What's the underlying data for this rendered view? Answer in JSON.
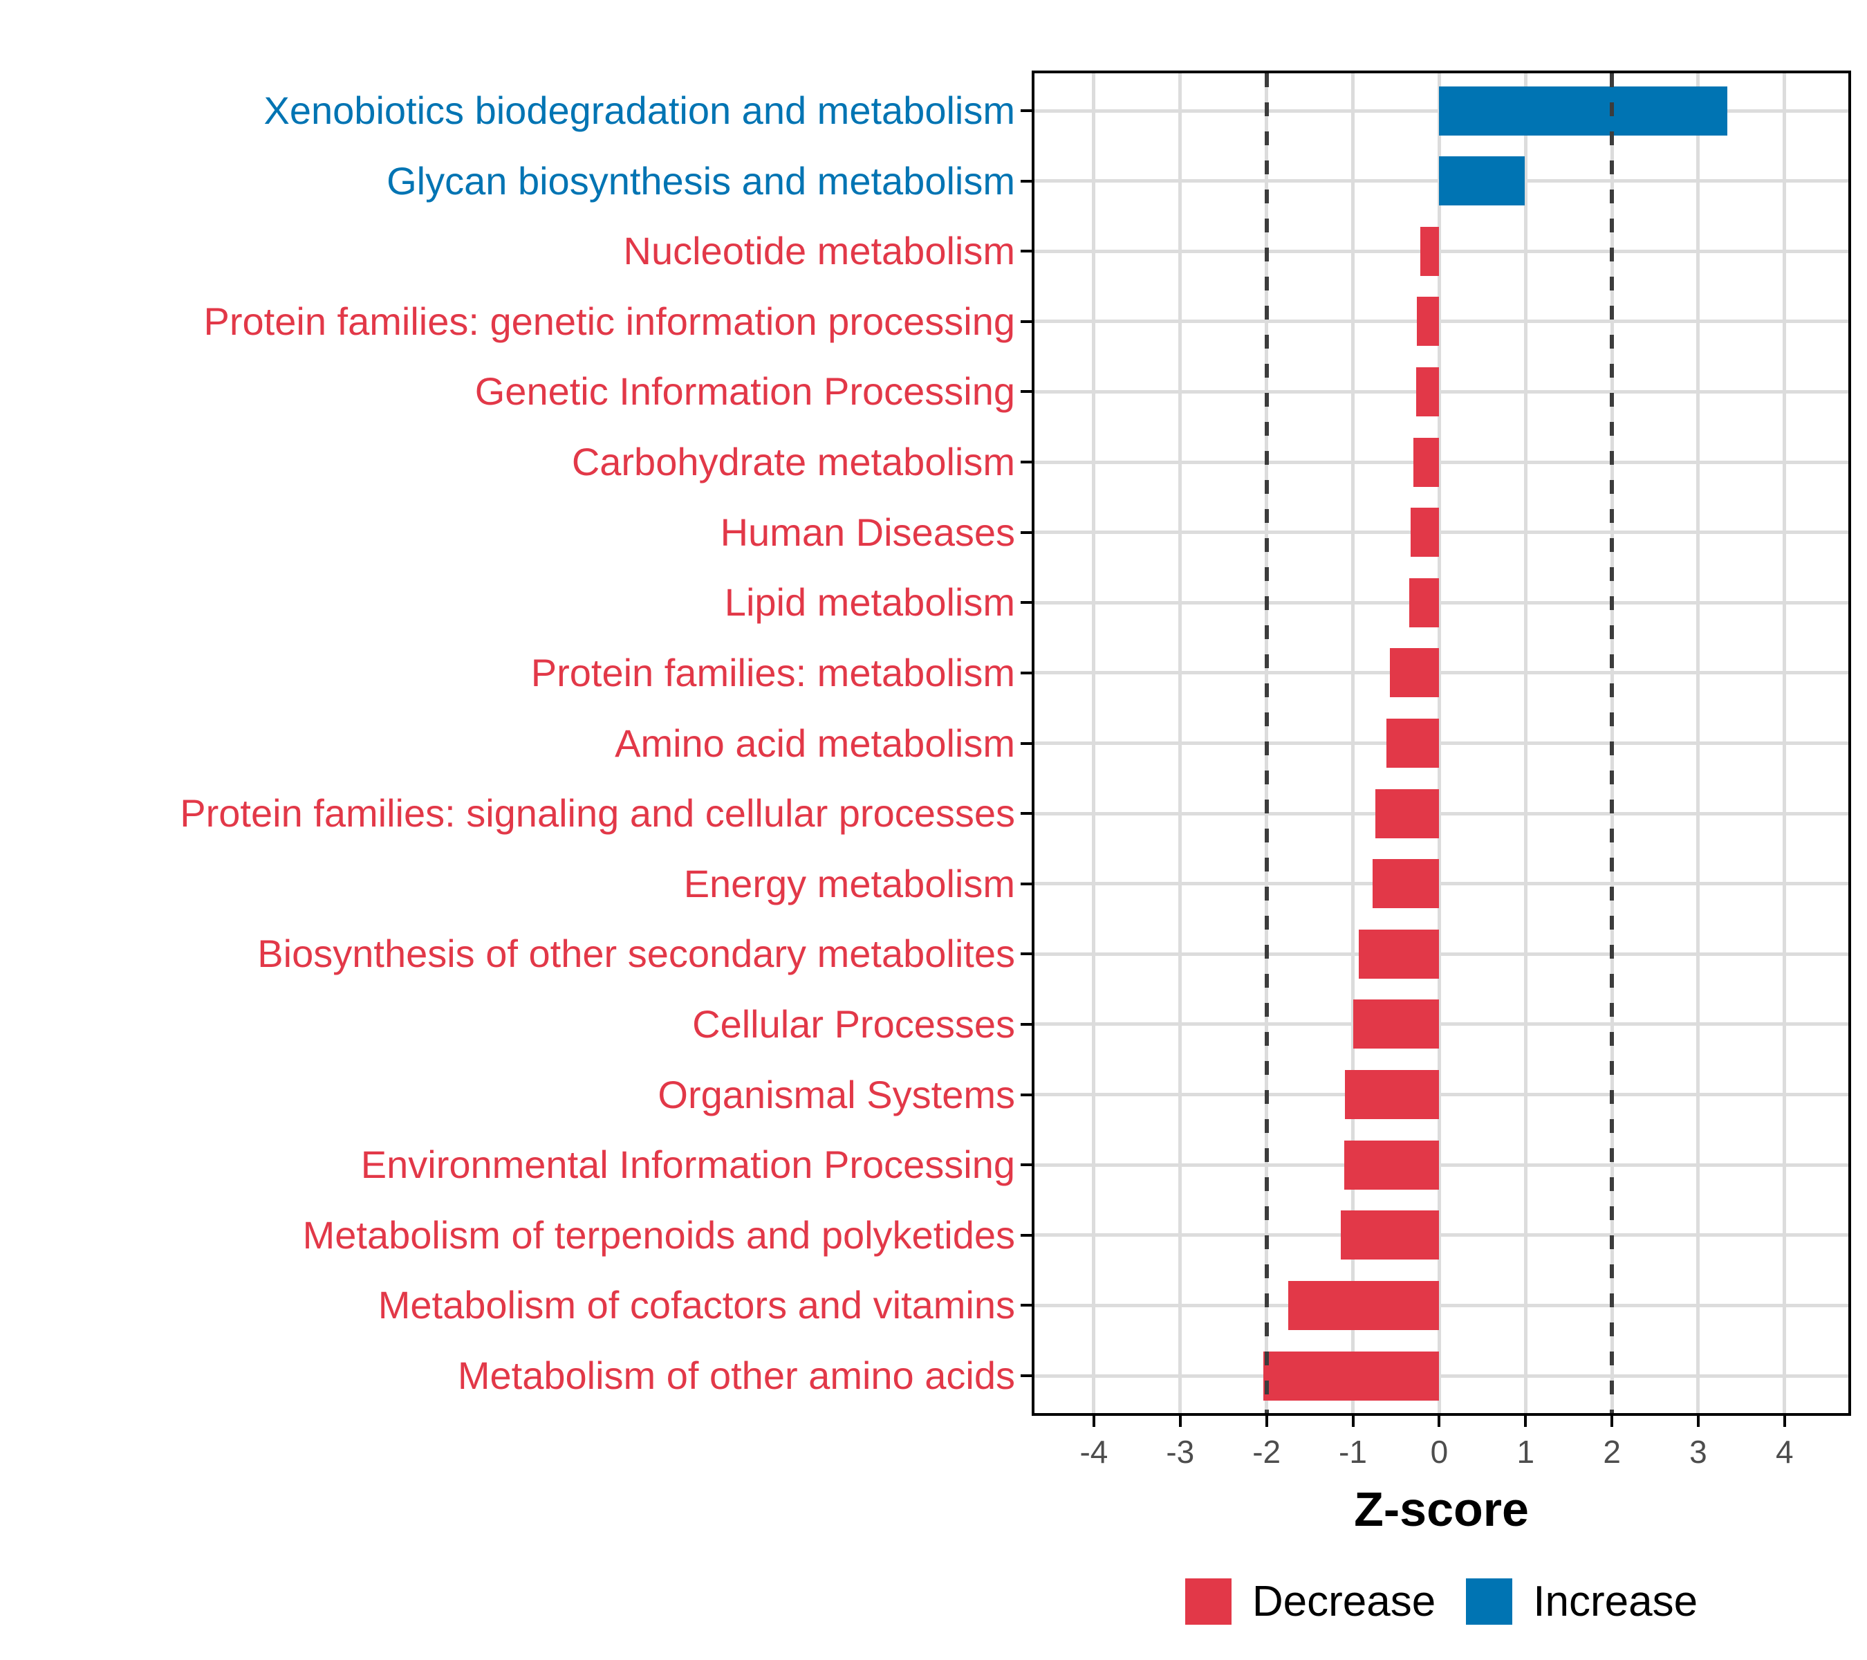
{
  "chart_data": {
    "type": "bar",
    "orientation": "horizontal",
    "title": "",
    "xlabel": "Z-score",
    "ylabel": "",
    "xlim": [
      -4.72,
      4.77
    ],
    "x_ticks": [
      -4,
      -3,
      -2,
      -1,
      0,
      1,
      2,
      3,
      4
    ],
    "reference_lines_dashed": [
      -2,
      2
    ],
    "grid": "major-both-axes",
    "legend_position": "bottom",
    "bar_groups": {
      "Decrease": "#E23848",
      "Increase": "#0074B3"
    },
    "categories": [
      {
        "label": "Xenobiotics biodegradation and metabolism",
        "value": 3.34,
        "group": "Increase"
      },
      {
        "label": "Glycan biosynthesis and metabolism",
        "value": 0.99,
        "group": "Increase"
      },
      {
        "label": "Nucleotide metabolism",
        "value": -0.22,
        "group": "Decrease"
      },
      {
        "label": "Protein families: genetic information processing",
        "value": -0.26,
        "group": "Decrease"
      },
      {
        "label": "Genetic Information Processing",
        "value": -0.27,
        "group": "Decrease"
      },
      {
        "label": "Carbohydrate metabolism",
        "value": -0.3,
        "group": "Decrease"
      },
      {
        "label": "Human Diseases",
        "value": -0.33,
        "group": "Decrease"
      },
      {
        "label": "Lipid metabolism",
        "value": -0.35,
        "group": "Decrease"
      },
      {
        "label": "Protein families: metabolism",
        "value": -0.57,
        "group": "Decrease"
      },
      {
        "label": "Amino acid metabolism",
        "value": -0.61,
        "group": "Decrease"
      },
      {
        "label": "Protein families: signaling and cellular processes",
        "value": -0.74,
        "group": "Decrease"
      },
      {
        "label": "Energy metabolism",
        "value": -0.77,
        "group": "Decrease"
      },
      {
        "label": "Biosynthesis of other secondary metabolites",
        "value": -0.93,
        "group": "Decrease"
      },
      {
        "label": "Cellular Processes",
        "value": -1.0,
        "group": "Decrease"
      },
      {
        "label": "Organismal Systems",
        "value": -1.09,
        "group": "Decrease"
      },
      {
        "label": "Environmental Information Processing",
        "value": -1.1,
        "group": "Decrease"
      },
      {
        "label": "Metabolism of terpenoids and polyketides",
        "value": -1.14,
        "group": "Decrease"
      },
      {
        "label": "Metabolism of cofactors and vitamins",
        "value": -1.75,
        "group": "Decrease"
      },
      {
        "label": "Metabolism of other amino acids",
        "value": -2.04,
        "group": "Decrease"
      }
    ]
  },
  "axis": {
    "x_title": "Z-score",
    "x_tick_labels": [
      "-4",
      "-3",
      "-2",
      "-1",
      "0",
      "1",
      "2",
      "3",
      "4"
    ]
  },
  "legend": {
    "items": [
      {
        "label": "Decrease",
        "color": "#E23848"
      },
      {
        "label": "Increase",
        "color": "#0074B3"
      }
    ]
  },
  "style": {
    "grid_color": "#DCDCDC",
    "dash_color": "#3C3C3C",
    "tick_label_color": "#4D4D4D",
    "panel_border_color": "#000000",
    "background": "#ffffff"
  }
}
